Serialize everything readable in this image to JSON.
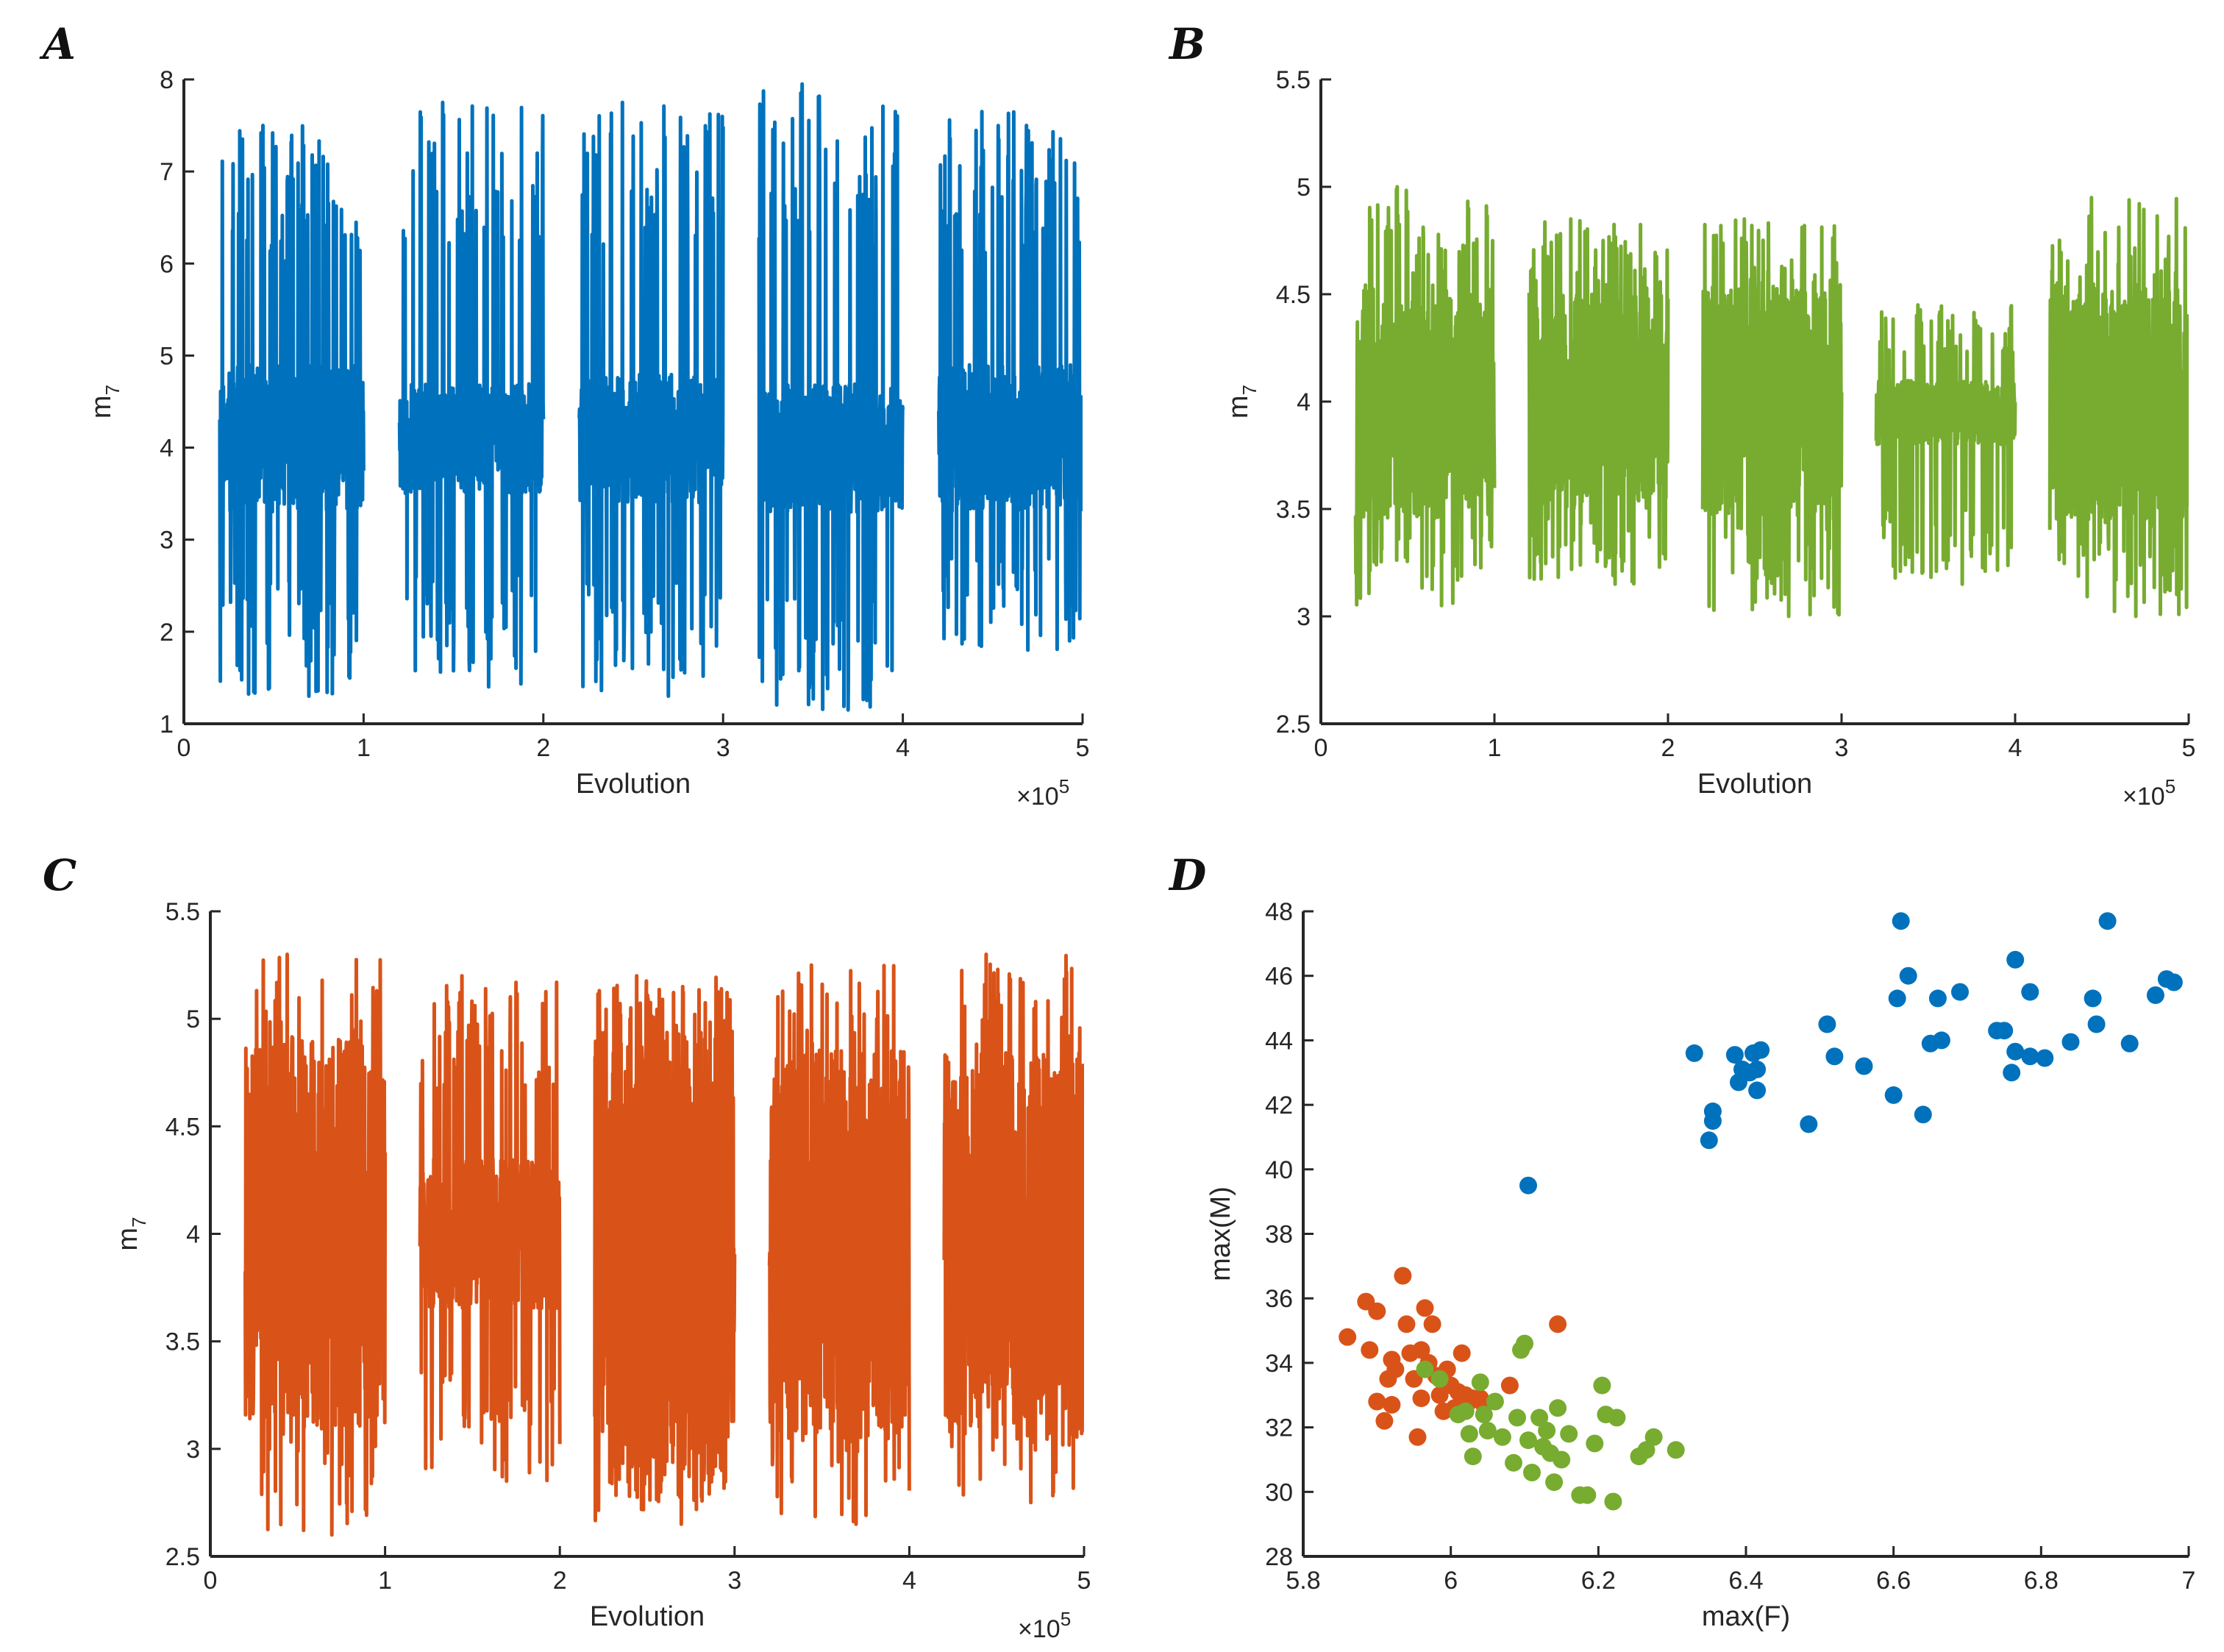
{
  "colors": {
    "blue": "#0072BD",
    "green": "#77AC30",
    "orange": "#D95319",
    "axis": "#262626"
  },
  "chart_data": [
    {
      "panel": "A",
      "type": "line",
      "xlabel": "Evolution",
      "ylabel_base": "m",
      "ylabel_sub": "7",
      "x_exponent_base": "×10",
      "x_exponent_power": "5",
      "xlim": [
        0,
        5
      ],
      "ylim": [
        1,
        8
      ],
      "xticks": [
        "0",
        "1",
        "2",
        "3",
        "4",
        "5"
      ],
      "yticks": [
        "1",
        "2",
        "3",
        "4",
        "5",
        "6",
        "7",
        "8"
      ],
      "grid": false,
      "color": "blue",
      "segments": [
        {
          "x": [
            0.2,
            1.0
          ],
          "center": 4.1,
          "amp_small": 0.8,
          "peak_max": 7.5,
          "trough_min": 1.3
        },
        {
          "x": [
            1.2,
            2.0
          ],
          "center": 4.1,
          "amp_small": 0.6,
          "peak_max": 7.75,
          "trough_min": 1.4
        },
        {
          "x": [
            2.2,
            3.0
          ],
          "center": 4.1,
          "amp_small": 0.7,
          "peak_max": 7.75,
          "trough_min": 1.3
        },
        {
          "x": [
            3.2,
            4.0
          ],
          "center": 4.0,
          "amp_small": 0.7,
          "peak_max": 7.95,
          "trough_min": 1.15
        },
        {
          "x": [
            4.2,
            5.0
          ],
          "center": 4.1,
          "amp_small": 0.8,
          "peak_max": 7.65,
          "trough_min": 1.8
        }
      ]
    },
    {
      "panel": "B",
      "type": "line",
      "xlabel": "Evolution",
      "ylabel_base": "m",
      "ylabel_sub": "7",
      "x_exponent_base": "×10",
      "x_exponent_power": "5",
      "xlim": [
        0,
        5
      ],
      "ylim": [
        2.5,
        5.5
      ],
      "xticks": [
        "0",
        "1",
        "2",
        "3",
        "4",
        "5"
      ],
      "yticks": [
        "2.5",
        "3",
        "3.5",
        "4",
        "4.5",
        "5",
        "5.5"
      ],
      "grid": false,
      "color": "green",
      "segments": [
        {
          "x": [
            0.2,
            1.0
          ],
          "center": 4.0,
          "amp_small": 0.55,
          "peak_max": 5.0,
          "trough_min": 3.05
        },
        {
          "x": [
            1.2,
            2.0
          ],
          "center": 4.0,
          "amp_small": 0.5,
          "peak_max": 4.85,
          "trough_min": 3.15
        },
        {
          "x": [
            2.2,
            3.0
          ],
          "center": 4.0,
          "amp_small": 0.55,
          "peak_max": 4.85,
          "trough_min": 3.0
        },
        {
          "x": [
            3.2,
            4.0
          ],
          "center": 3.95,
          "amp_small": 0.15,
          "peak_max": 4.45,
          "trough_min": 3.15
        },
        {
          "x": [
            4.2,
            5.0
          ],
          "center": 4.0,
          "amp_small": 0.55,
          "peak_max": 4.95,
          "trough_min": 3.0
        }
      ]
    },
    {
      "panel": "C",
      "type": "line",
      "xlabel": "Evolution",
      "ylabel_base": "m",
      "ylabel_sub": "7",
      "x_exponent_base": "×10",
      "x_exponent_power": "5",
      "xlim": [
        0,
        5
      ],
      "ylim": [
        2.5,
        5.5
      ],
      "xticks": [
        "0",
        "1",
        "2",
        "3",
        "4",
        "5"
      ],
      "yticks": [
        "2.5",
        "3",
        "3.5",
        "4",
        "4.5",
        "5",
        "5.5"
      ],
      "grid": false,
      "color": "orange",
      "segments": [
        {
          "x": [
            0.2,
            1.0
          ],
          "center": 4.0,
          "amp_small": 0.9,
          "peak_max": 5.3,
          "trough_min": 2.6
        },
        {
          "x": [
            1.2,
            2.0
          ],
          "center": 4.0,
          "amp_small": 0.35,
          "peak_max": 5.2,
          "trough_min": 2.85
        },
        {
          "x": [
            2.2,
            3.0
          ],
          "center": 3.95,
          "amp_small": 1.2,
          "peak_max": 5.2,
          "trough_min": 2.65
        },
        {
          "x": [
            3.2,
            4.0
          ],
          "center": 3.95,
          "amp_small": 0.9,
          "peak_max": 5.25,
          "trough_min": 2.65
        },
        {
          "x": [
            4.2,
            5.0
          ],
          "center": 3.95,
          "amp_small": 0.9,
          "peak_max": 5.3,
          "trough_min": 2.75
        }
      ]
    },
    {
      "panel": "D",
      "type": "scatter",
      "xlabel": "max(F)",
      "ylabel": "max(M)",
      "xlim": [
        5.8,
        7
      ],
      "ylim": [
        28,
        48
      ],
      "xticks": [
        "5.8",
        "6",
        "6.2",
        "6.4",
        "6.6",
        "6.8",
        "7"
      ],
      "yticks": [
        "28",
        "30",
        "32",
        "34",
        "36",
        "38",
        "40",
        "42",
        "44",
        "46",
        "48"
      ],
      "grid": false,
      "series": [
        {
          "color": "blue",
          "points": [
            [
              6.33,
              43.6
            ],
            [
              6.35,
              40.9
            ],
            [
              6.355,
              41.8
            ],
            [
              6.355,
              41.5
            ],
            [
              6.385,
              43.55
            ],
            [
              6.39,
              42.7
            ],
            [
              6.395,
              43.1
            ],
            [
              6.405,
              43.0
            ],
            [
              6.41,
              43.6
            ],
            [
              6.415,
              43.1
            ],
            [
              6.415,
              42.45
            ],
            [
              6.42,
              43.7
            ],
            [
              6.485,
              41.4
            ],
            [
              6.51,
              44.5
            ],
            [
              6.52,
              43.5
            ],
            [
              6.56,
              43.2
            ],
            [
              6.6,
              42.3
            ],
            [
              6.605,
              45.3
            ],
            [
              6.61,
              47.7
            ],
            [
              6.62,
              46.0
            ],
            [
              6.64,
              41.7
            ],
            [
              6.65,
              43.9
            ],
            [
              6.66,
              45.3
            ],
            [
              6.665,
              44.0
            ],
            [
              6.69,
              45.5
            ],
            [
              6.74,
              44.3
            ],
            [
              6.75,
              44.3
            ],
            [
              6.76,
              43.0
            ],
            [
              6.765,
              46.5
            ],
            [
              6.765,
              43.65
            ],
            [
              6.785,
              45.5
            ],
            [
              6.785,
              43.5
            ],
            [
              6.805,
              43.45
            ],
            [
              6.84,
              43.95
            ],
            [
              6.87,
              45.3
            ],
            [
              6.875,
              44.5
            ],
            [
              6.89,
              47.7
            ],
            [
              6.92,
              43.9
            ],
            [
              6.955,
              45.4
            ],
            [
              6.97,
              45.9
            ],
            [
              6.98,
              45.8
            ],
            [
              6.105,
              39.5
            ]
          ]
        },
        {
          "color": "orange",
          "points": [
            [
              5.86,
              34.8
            ],
            [
              5.885,
              35.9
            ],
            [
              5.89,
              34.4
            ],
            [
              5.9,
              35.6
            ],
            [
              5.9,
              32.8
            ],
            [
              5.91,
              32.2
            ],
            [
              5.915,
              33.5
            ],
            [
              5.92,
              34.1
            ],
            [
              5.92,
              32.7
            ],
            [
              5.925,
              33.8
            ],
            [
              5.935,
              36.7
            ],
            [
              5.94,
              35.2
            ],
            [
              5.945,
              34.3
            ],
            [
              5.95,
              33.5
            ],
            [
              5.955,
              31.7
            ],
            [
              5.96,
              32.9
            ],
            [
              5.96,
              34.4
            ],
            [
              5.965,
              35.7
            ],
            [
              5.97,
              34.0
            ],
            [
              5.975,
              35.2
            ],
            [
              5.98,
              33.6
            ],
            [
              5.985,
              33.0
            ],
            [
              5.99,
              32.5
            ],
            [
              5.995,
              33.8
            ],
            [
              6.0,
              33.3
            ],
            [
              6.005,
              32.6
            ],
            [
              6.01,
              33.1
            ],
            [
              6.015,
              34.3
            ],
            [
              6.02,
              33.0
            ],
            [
              6.025,
              32.8
            ],
            [
              6.03,
              32.9
            ],
            [
              6.04,
              32.9
            ],
            [
              6.045,
              32.7
            ],
            [
              6.08,
              33.3
            ],
            [
              6.145,
              35.2
            ]
          ]
        },
        {
          "color": "green",
          "points": [
            [
              5.965,
              33.8
            ],
            [
              5.985,
              33.5
            ],
            [
              6.01,
              32.4
            ],
            [
              6.02,
              32.5
            ],
            [
              6.025,
              31.8
            ],
            [
              6.03,
              31.1
            ],
            [
              6.04,
              33.4
            ],
            [
              6.045,
              32.4
            ],
            [
              6.05,
              31.9
            ],
            [
              6.06,
              32.8
            ],
            [
              6.07,
              31.7
            ],
            [
              6.085,
              30.9
            ],
            [
              6.09,
              32.3
            ],
            [
              6.095,
              34.4
            ],
            [
              6.1,
              34.6
            ],
            [
              6.105,
              31.6
            ],
            [
              6.11,
              30.6
            ],
            [
              6.12,
              32.3
            ],
            [
              6.125,
              31.4
            ],
            [
              6.13,
              31.9
            ],
            [
              6.135,
              31.2
            ],
            [
              6.14,
              30.3
            ],
            [
              6.145,
              32.6
            ],
            [
              6.15,
              31.0
            ],
            [
              6.16,
              31.8
            ],
            [
              6.175,
              29.9
            ],
            [
              6.185,
              29.9
            ],
            [
              6.195,
              31.5
            ],
            [
              6.205,
              33.3
            ],
            [
              6.21,
              32.4
            ],
            [
              6.22,
              29.7
            ],
            [
              6.225,
              32.3
            ],
            [
              6.255,
              31.1
            ],
            [
              6.265,
              31.3
            ],
            [
              6.275,
              31.7
            ],
            [
              6.305,
              31.3
            ]
          ]
        }
      ]
    }
  ]
}
